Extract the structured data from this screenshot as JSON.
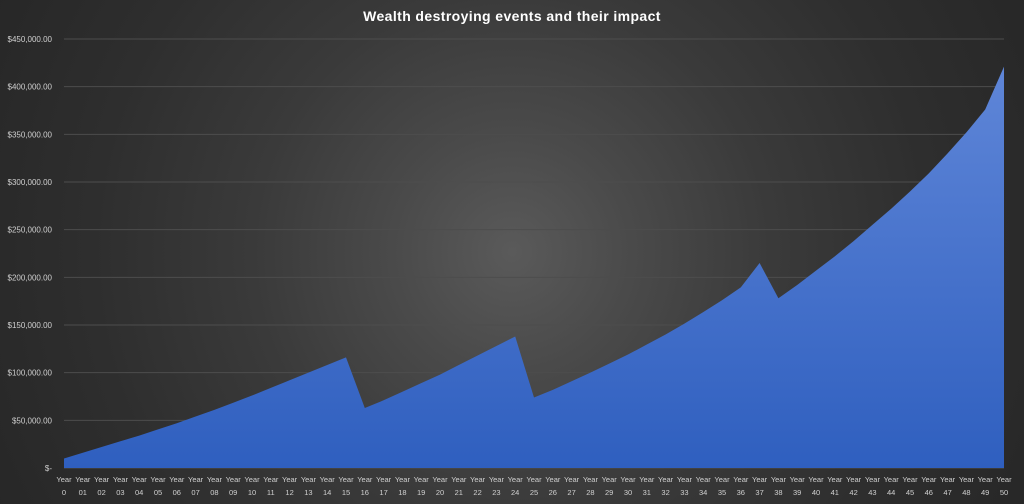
{
  "chart_data": {
    "type": "area",
    "title": "Wealth destroying events and their impact",
    "xlabel": "",
    "ylabel": "",
    "ylim": [
      0,
      450000
    ],
    "yticks": [
      0,
      50000,
      100000,
      150000,
      200000,
      250000,
      300000,
      350000,
      400000,
      450000
    ],
    "ytick_labels": [
      "$-",
      "$50,000.00",
      "$100,000.00",
      "$150,000.00",
      "$200,000.00",
      "$250,000.00",
      "$300,000.00",
      "$350,000.00",
      "$400,000.00",
      "$450,000.00"
    ],
    "grid": true,
    "colors": {
      "area_top": "#5f86d8",
      "area_bottom": "#2f5fbf",
      "grid": "#4d4d4d"
    },
    "categories": [
      [
        "Year",
        "0"
      ],
      [
        "Year",
        "01"
      ],
      [
        "Year",
        "02"
      ],
      [
        "Year",
        "03"
      ],
      [
        "Year",
        "04"
      ],
      [
        "Year",
        "05"
      ],
      [
        "Year",
        "06"
      ],
      [
        "Year",
        "07"
      ],
      [
        "Year",
        "08"
      ],
      [
        "Year",
        "09"
      ],
      [
        "Year",
        "10"
      ],
      [
        "Year",
        "11"
      ],
      [
        "Year",
        "12"
      ],
      [
        "Year",
        "13"
      ],
      [
        "Year",
        "14"
      ],
      [
        "Year",
        "15"
      ],
      [
        "Year",
        "16"
      ],
      [
        "Year",
        "17"
      ],
      [
        "Year",
        "18"
      ],
      [
        "Year",
        "19"
      ],
      [
        "Year",
        "20"
      ],
      [
        "Year",
        "21"
      ],
      [
        "Year",
        "22"
      ],
      [
        "Year",
        "23"
      ],
      [
        "Year",
        "24"
      ],
      [
        "Year",
        "25"
      ],
      [
        "Year",
        "26"
      ],
      [
        "Year",
        "27"
      ],
      [
        "Year",
        "28"
      ],
      [
        "Year",
        "29"
      ],
      [
        "Year",
        "30"
      ],
      [
        "Year",
        "31"
      ],
      [
        "Year",
        "32"
      ],
      [
        "Year",
        "33"
      ],
      [
        "Year",
        "34"
      ],
      [
        "Year",
        "35"
      ],
      [
        "Year",
        "36"
      ],
      [
        "Year",
        "37"
      ],
      [
        "Year",
        "38"
      ],
      [
        "Year",
        "39"
      ],
      [
        "Year",
        "40"
      ],
      [
        "Year",
        "41"
      ],
      [
        "Year",
        "42"
      ],
      [
        "Year",
        "43"
      ],
      [
        "Year",
        "44"
      ],
      [
        "Year",
        "45"
      ],
      [
        "Year",
        "46"
      ],
      [
        "Year",
        "47"
      ],
      [
        "Year",
        "48"
      ],
      [
        "Year",
        "49"
      ],
      [
        "Year",
        "50"
      ]
    ],
    "values": [
      10000,
      16000,
      22000,
      28000,
      34000,
      40500,
      47000,
      54000,
      61000,
      68500,
      76000,
      84000,
      92000,
      100000,
      108000,
      116000,
      63000,
      71000,
      80000,
      89000,
      98000,
      108000,
      118000,
      128000,
      138000,
      74000,
      82000,
      91000,
      100000,
      109500,
      119000,
      129500,
      140000,
      151500,
      163500,
      176000,
      189500,
      215000,
      178000,
      192000,
      207000,
      222000,
      238000,
      255000,
      272000,
      290000,
      309000,
      330000,
      352000,
      376000,
      421000
    ]
  }
}
